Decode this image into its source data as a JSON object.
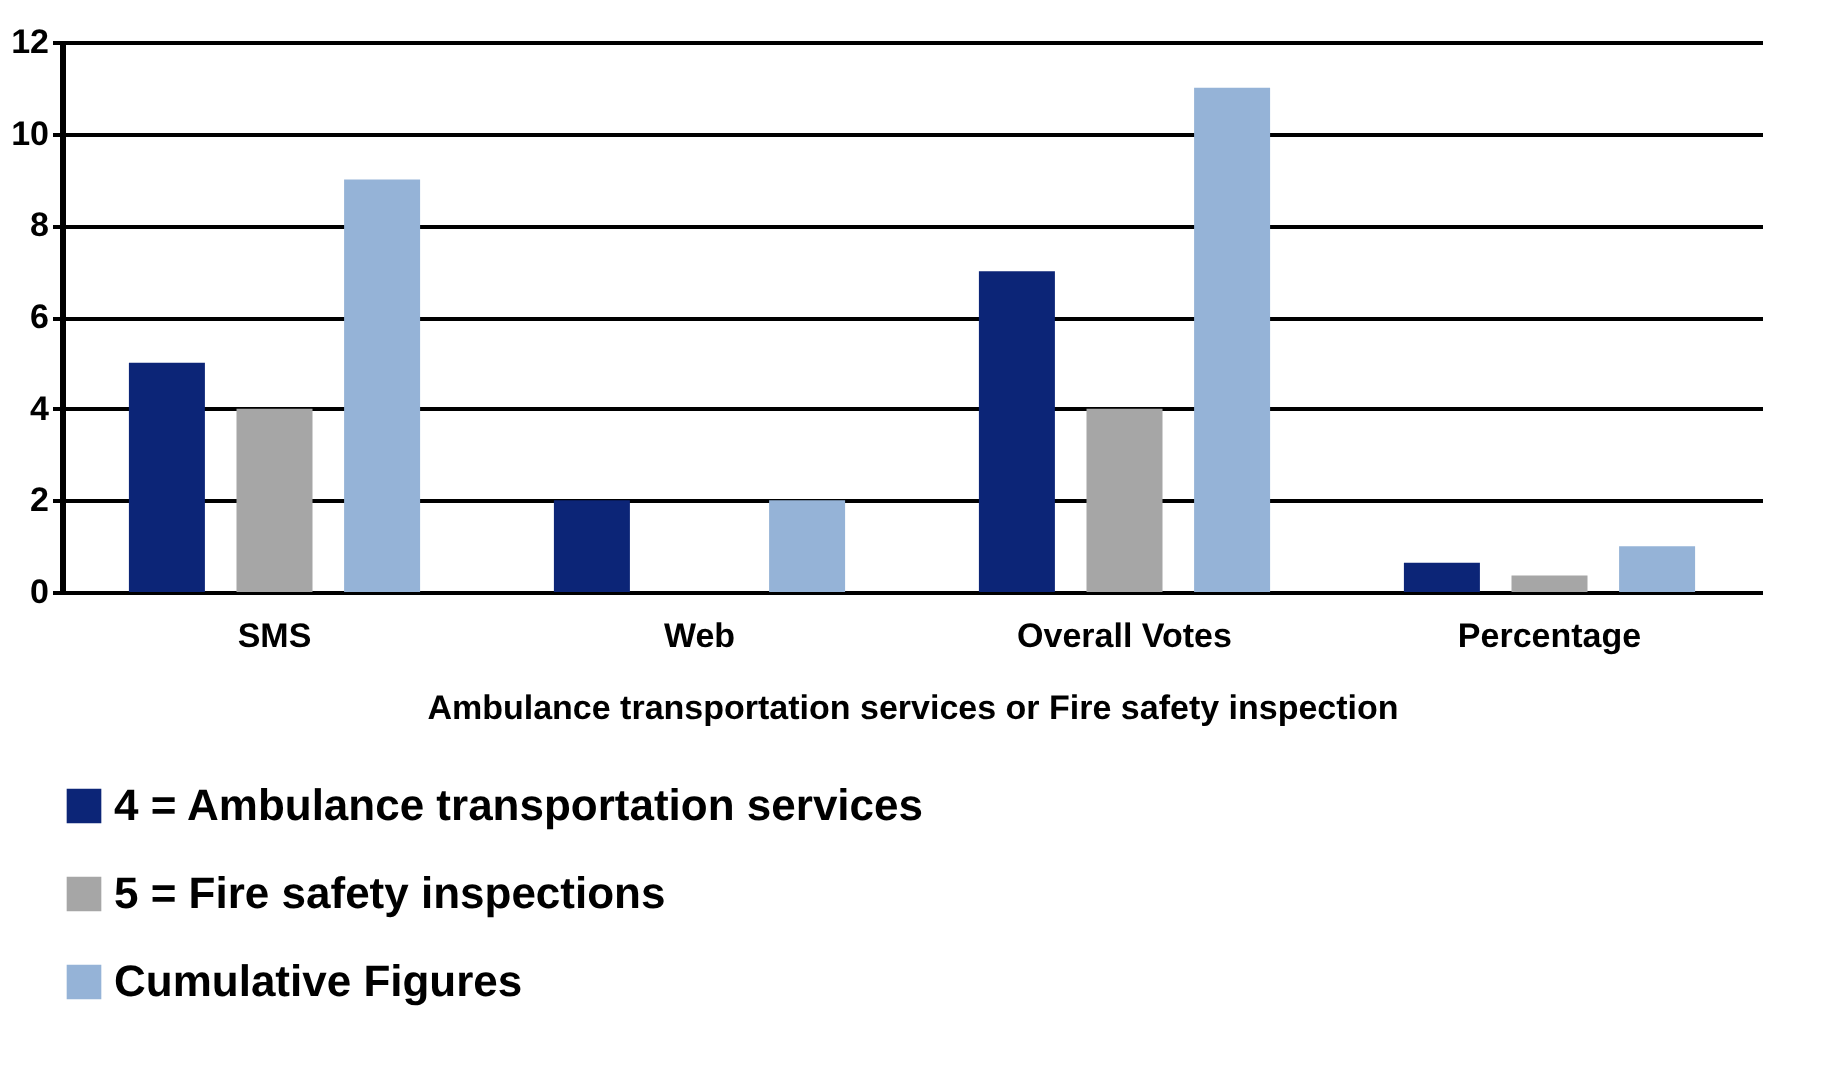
{
  "chart_data": {
    "type": "bar",
    "xlabel": "Ambulance transportation services or Fire safety inspection",
    "categories": [
      "SMS",
      "Web",
      "Overall Votes",
      "Percentage"
    ],
    "series": [
      {
        "name": "4 = Ambulance transportation services",
        "color": "#0c2577",
        "values": [
          5,
          2,
          7,
          0.64
        ]
      },
      {
        "name": "5 = Fire safety inspections",
        "color": "#a6a6a6",
        "values": [
          4,
          0,
          4,
          0.36
        ]
      },
      {
        "name": "Cumulative Figures",
        "color": "#95b3d7",
        "values": [
          9,
          2,
          11,
          1.0
        ]
      }
    ],
    "ylim": [
      0,
      12
    ],
    "yticks": [
      0,
      2,
      4,
      6,
      8,
      10,
      12
    ],
    "grid": "y",
    "legend": "bottom"
  }
}
